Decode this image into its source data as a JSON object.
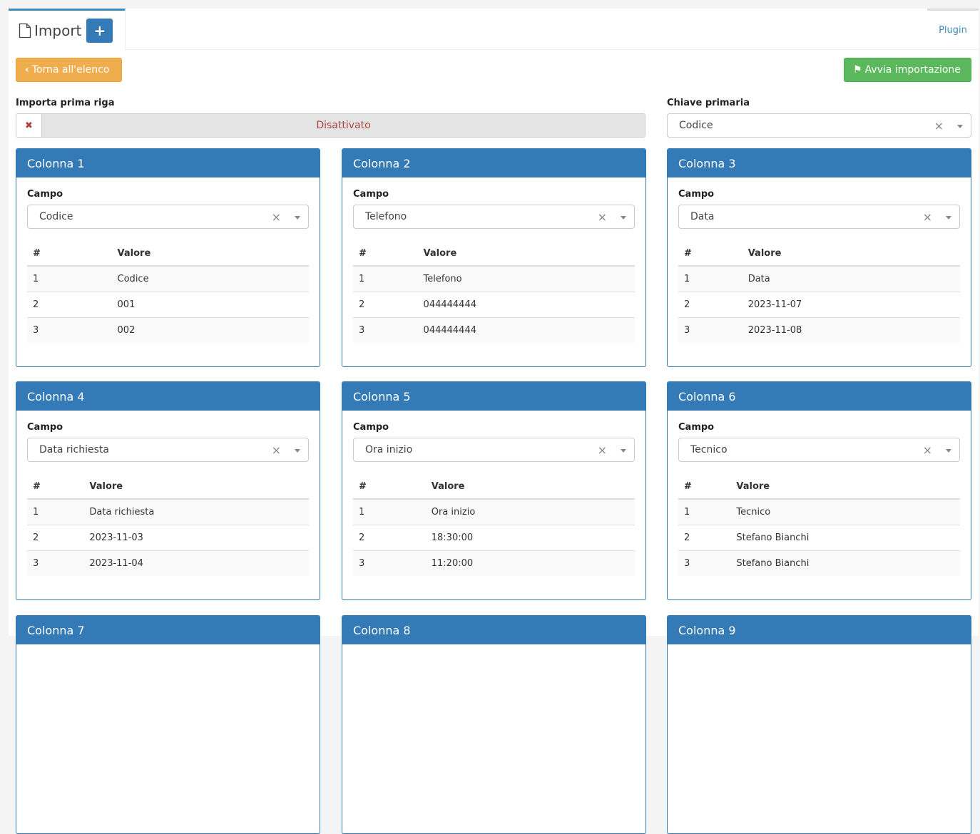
{
  "tab": {
    "title": "Import",
    "plus": "+",
    "plugin": "Plugin"
  },
  "buttons": {
    "back": "Torna all'elenco",
    "start": "Avvia importazione"
  },
  "import_first": {
    "label": "Importa prima riga",
    "value": "Disattivato"
  },
  "primary_key": {
    "label": "Chiave primaria",
    "value": "Codice"
  },
  "table_headers": {
    "num": "#",
    "value": "Valore"
  },
  "campo_label": "Campo",
  "columns": [
    {
      "title": "Colonna 1",
      "field": "Codice",
      "rows": [
        [
          "1",
          "Codice"
        ],
        [
          "2",
          "001"
        ],
        [
          "3",
          "002"
        ]
      ]
    },
    {
      "title": "Colonna 2",
      "field": "Telefono",
      "rows": [
        [
          "1",
          "Telefono"
        ],
        [
          "2",
          "044444444"
        ],
        [
          "3",
          "044444444"
        ]
      ]
    },
    {
      "title": "Colonna 3",
      "field": "Data",
      "rows": [
        [
          "1",
          "Data"
        ],
        [
          "2",
          "2023-11-07"
        ],
        [
          "3",
          "2023-11-08"
        ]
      ]
    },
    {
      "title": "Colonna 4",
      "field": "Data richiesta",
      "rows": [
        [
          "1",
          "Data richiesta"
        ],
        [
          "2",
          "2023-11-03"
        ],
        [
          "3",
          "2023-11-04"
        ]
      ]
    },
    {
      "title": "Colonna 5",
      "field": "Ora inizio",
      "rows": [
        [
          "1",
          "Ora inizio"
        ],
        [
          "2",
          "18:30:00"
        ],
        [
          "3",
          "11:20:00"
        ]
      ]
    },
    {
      "title": "Colonna 6",
      "field": "Tecnico",
      "rows": [
        [
          "1",
          "Tecnico"
        ],
        [
          "2",
          "Stefano Bianchi"
        ],
        [
          "3",
          "Stefano Bianchi"
        ]
      ]
    },
    {
      "title": "Colonna 7"
    },
    {
      "title": "Colonna 8"
    },
    {
      "title": "Colonna 9"
    }
  ]
}
